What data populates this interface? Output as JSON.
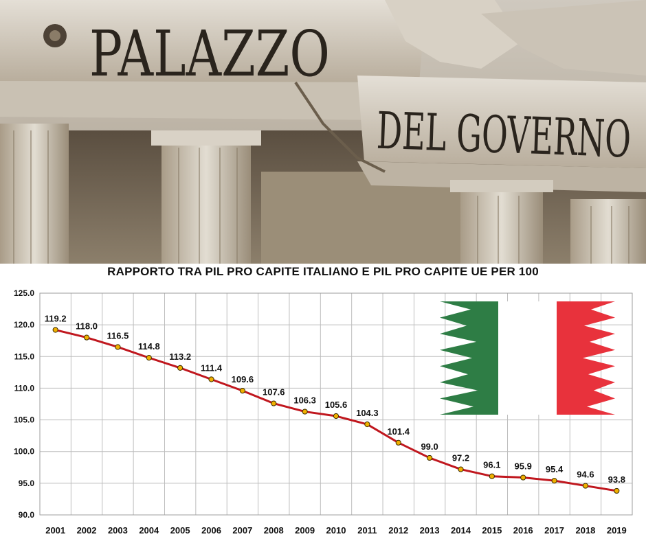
{
  "photo": {
    "inscription_line1": "PALAZZO",
    "inscription_line2": "DEL GOVERNO"
  },
  "flag": {
    "colors": [
      "#2e7d45",
      "#ffffff",
      "#e8323c"
    ],
    "icon": "italian-flag-icon"
  },
  "chart_data": {
    "type": "line",
    "title": "RAPPORTO TRA PIL PRO CAPITE ITALIANO E PIL PRO CAPITE UE PER 100",
    "xlabel": "",
    "ylabel": "",
    "ylim": [
      90.0,
      125.0
    ],
    "yticks": [
      "90.0",
      "95.0",
      "100.0",
      "105.0",
      "110.0",
      "115.0",
      "120.0",
      "125.0"
    ],
    "grid": true,
    "legend": "none",
    "line_color": "#c0171e",
    "marker_color": "#f0b000",
    "categories": [
      "2001",
      "2002",
      "2003",
      "2004",
      "2005",
      "2006",
      "2007",
      "2008",
      "2009",
      "2010",
      "2011",
      "2012",
      "2013",
      "2014",
      "2015",
      "2016",
      "2017",
      "2018",
      "2019"
    ],
    "values": [
      119.2,
      118.0,
      116.5,
      114.8,
      113.2,
      111.4,
      109.6,
      107.6,
      106.3,
      105.6,
      104.3,
      101.4,
      99.0,
      97.2,
      96.1,
      95.9,
      95.4,
      94.6,
      93.8
    ],
    "labels": [
      "119.2",
      "118.0",
      "116.5",
      "114.8",
      "113.2",
      "111.4",
      "109.6",
      "107.6",
      "106.3",
      "105.6",
      "104.3",
      "101.4",
      "99.0",
      "97.2",
      "96.1",
      "95.9",
      "95.4",
      "94.6",
      "93.8"
    ]
  }
}
